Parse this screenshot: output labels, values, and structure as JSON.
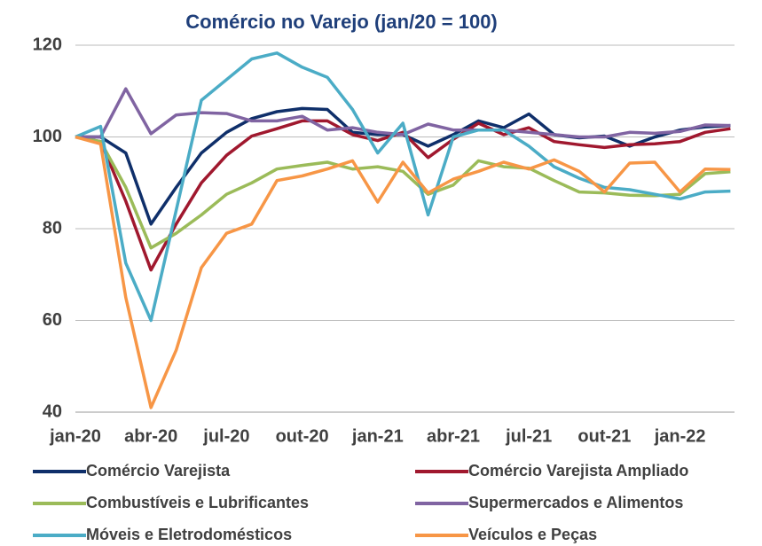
{
  "chart_data": {
    "type": "line",
    "title": "Comércio no Varejo (jan/20 = 100)",
    "categories": [
      "jan-20",
      null,
      null,
      "abr-20",
      null,
      null,
      "jul-20",
      null,
      null,
      "out-20",
      null,
      null,
      "jan-21",
      null,
      null,
      "abr-21",
      null,
      null,
      "jul-21",
      null,
      null,
      "out-21",
      null,
      null,
      "jan-22",
      null,
      null
    ],
    "ylim": [
      40,
      120
    ],
    "yticks": [
      40,
      60,
      80,
      100,
      120
    ],
    "grid": true,
    "series": [
      {
        "name": "Comércio Varejista",
        "color": "#0f2f6a",
        "values": [
          100,
          100,
          96.5,
          81,
          89,
          96.5,
          101,
          104,
          105.5,
          106.2,
          106,
          101,
          100.5,
          100.5,
          98,
          100.5,
          103.5,
          102,
          105,
          100.5,
          99.8,
          100.2,
          98,
          100,
          101.5,
          102.2,
          102.5
        ]
      },
      {
        "name": "Comércio Varejista Ampliado",
        "color": "#a0182e",
        "values": [
          100,
          99,
          86,
          71,
          81,
          90,
          96,
          100.2,
          101.8,
          103.5,
          103.5,
          100.5,
          99.2,
          101,
          95.5,
          99.5,
          103,
          100.5,
          102,
          99,
          98.3,
          97.7,
          98.3,
          98.5,
          99,
          101,
          101.8
        ]
      },
      {
        "name": "Combustíveis e Lubrificantes",
        "color": "#9bbb59",
        "values": [
          100,
          99,
          89,
          75.8,
          79,
          83,
          87.5,
          90,
          93,
          93.8,
          94.5,
          93,
          93.5,
          92.5,
          87.5,
          89.5,
          94.8,
          93.5,
          93.2,
          90.5,
          88,
          87.8,
          87.3,
          87.2,
          87.5,
          92,
          92.4
        ]
      },
      {
        "name": "Supermercados e Alimentos",
        "color": "#8064a2",
        "values": [
          100,
          100,
          110.5,
          100.7,
          104.8,
          105.3,
          105.1,
          103.5,
          103.5,
          104.5,
          101.5,
          102,
          101,
          100.5,
          102.8,
          101.5,
          101.5,
          101.5,
          101,
          100.5,
          100,
          100,
          101,
          100.8,
          101.2,
          102.6,
          102.5
        ]
      },
      {
        "name": "Móveis e Eletrodomésticos",
        "color": "#4bacc6",
        "values": [
          100,
          102.3,
          72.5,
          60,
          84,
          108,
          112.5,
          117,
          118.3,
          115.2,
          113,
          106,
          96.5,
          103,
          83,
          100,
          101.5,
          101.5,
          98,
          93.5,
          91,
          89,
          88.5,
          87.5,
          86.5,
          88,
          88.2
        ]
      },
      {
        "name": "Veículos e Peças",
        "color": "#f79646",
        "values": [
          100,
          98.5,
          65,
          41,
          53.5,
          71.5,
          79,
          81,
          90.5,
          91.5,
          93,
          94.8,
          85.8,
          94.5,
          87.8,
          90.8,
          92.5,
          94.5,
          93,
          95,
          92.5,
          88,
          94.3,
          94.5,
          88,
          93,
          92.9
        ]
      }
    ]
  }
}
